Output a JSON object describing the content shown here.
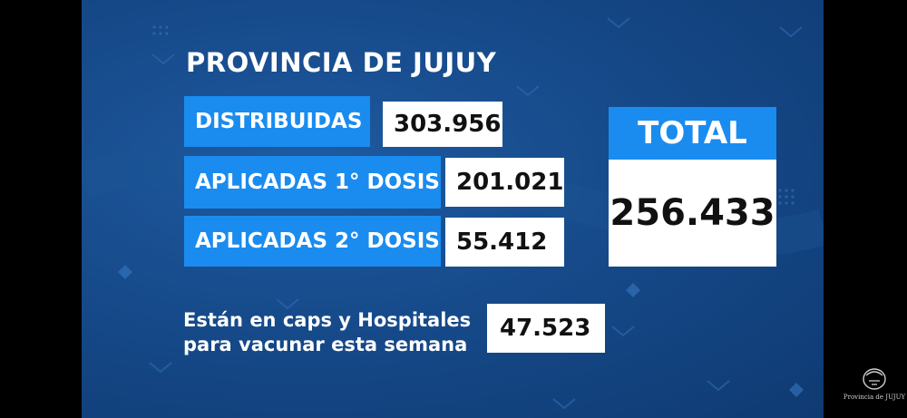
{
  "title": "PROVINCIA DE JUJUY",
  "rows": [
    {
      "label": "DISTRIBUIDAS",
      "value": "303.956"
    },
    {
      "label": "APLICADAS 1° DOSIS",
      "value": "201.021"
    },
    {
      "label": "APLICADAS 2° DOSIS",
      "value": "55.412"
    }
  ],
  "total": {
    "label": "TOTAL",
    "value": "256.433"
  },
  "note": {
    "line1": "Están en caps y Hospitales",
    "line2": "para vacunar esta semana",
    "value": "47.523"
  },
  "logo": {
    "text": "Provincia de JUJUY",
    "icon": "provincial-seal-icon"
  },
  "colors": {
    "background": "#164a8a",
    "accent": "#1a8cf0",
    "box": "#ffffff"
  }
}
